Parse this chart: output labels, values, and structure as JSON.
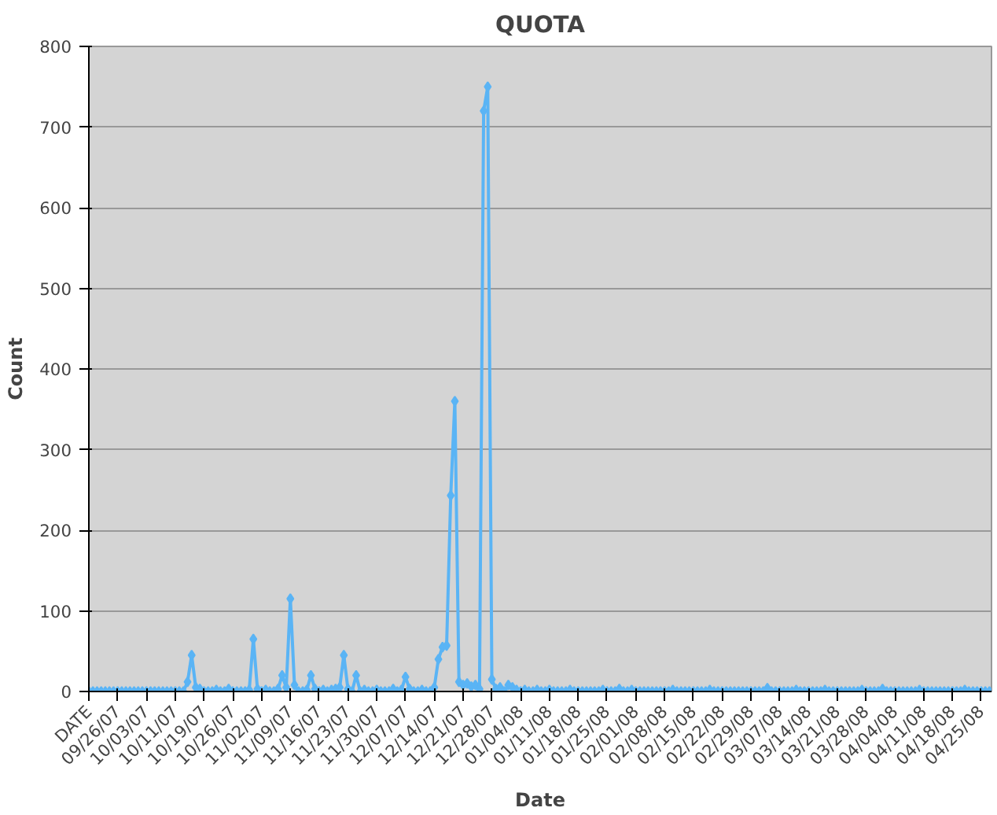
{
  "chart_data": {
    "type": "line",
    "title": "QUOTA",
    "xlabel": "Date",
    "ylabel": "Count",
    "categories": [
      "DATE",
      null,
      null,
      null,
      null,
      null,
      null,
      "09/26/07",
      null,
      null,
      null,
      null,
      null,
      null,
      "10/03/07",
      null,
      null,
      null,
      null,
      null,
      null,
      "10/11/07",
      null,
      null,
      null,
      null,
      null,
      null,
      "10/19/07",
      null,
      null,
      null,
      null,
      null,
      null,
      "10/26/07",
      null,
      null,
      null,
      null,
      null,
      null,
      "11/02/07",
      null,
      null,
      null,
      null,
      null,
      null,
      "11/09/07",
      null,
      null,
      null,
      null,
      null,
      null,
      "11/16/07",
      null,
      null,
      null,
      null,
      null,
      null,
      "11/23/07",
      null,
      null,
      null,
      null,
      null,
      null,
      "11/30/07",
      null,
      null,
      null,
      null,
      null,
      null,
      "12/07/07",
      null,
      null,
      null,
      null,
      null,
      null,
      "12/14/07",
      null,
      null,
      null,
      null,
      null,
      null,
      "12/21/07",
      null,
      null,
      null,
      null,
      null,
      null,
      "12/28/07",
      null,
      null,
      null,
      null,
      null,
      null,
      "01/04/08",
      null,
      null,
      null,
      null,
      null,
      null,
      "01/11/08",
      null,
      null,
      null,
      null,
      null,
      null,
      "01/18/08",
      null,
      null,
      null,
      null,
      null,
      null,
      "01/25/08",
      null,
      null,
      null,
      null,
      null,
      null,
      "02/01/08",
      null,
      null,
      null,
      null,
      null,
      null,
      "02/08/08",
      null,
      null,
      null,
      null,
      null,
      null,
      "02/15/08",
      null,
      null,
      null,
      null,
      null,
      null,
      "02/22/08",
      null,
      null,
      null,
      null,
      null,
      null,
      "02/29/08",
      null,
      null,
      null,
      null,
      null,
      null,
      "03/07/08",
      null,
      null,
      null,
      null,
      null,
      null,
      "03/14/08",
      null,
      null,
      null,
      null,
      null,
      null,
      "03/21/08",
      null,
      null,
      null,
      null,
      null,
      null,
      "03/28/08",
      null,
      null,
      null,
      null,
      null,
      null,
      "04/04/08",
      null,
      null,
      null,
      null,
      null,
      null,
      "04/11/08",
      null,
      null,
      null,
      null,
      null,
      null,
      "04/18/08",
      null,
      null,
      null,
      null,
      null,
      null,
      "04/25/08",
      null,
      null
    ],
    "series": [
      {
        "color": "#5ab4f5",
        "values": [
          0,
          0,
          0,
          0,
          0,
          0,
          0,
          0,
          0,
          0,
          0,
          0,
          0,
          0,
          0,
          0,
          0,
          0,
          0,
          0,
          0,
          0,
          0,
          0,
          12,
          45,
          5,
          3,
          0,
          0,
          0,
          2,
          0,
          0,
          3,
          0,
          0,
          0,
          0,
          2,
          65,
          3,
          0,
          2,
          0,
          0,
          3,
          20,
          5,
          115,
          8,
          0,
          0,
          2,
          20,
          3,
          0,
          2,
          0,
          2,
          3,
          5,
          45,
          3,
          0,
          20,
          0,
          2,
          0,
          0,
          2,
          0,
          0,
          0,
          3,
          0,
          2,
          18,
          3,
          0,
          0,
          2,
          0,
          0,
          5,
          40,
          55,
          57,
          243,
          360,
          12,
          8,
          10,
          6,
          8,
          3,
          720,
          750,
          15,
          3,
          5,
          0,
          8,
          5,
          2,
          0,
          2,
          0,
          0,
          2,
          0,
          0,
          2,
          0,
          0,
          0,
          0,
          2,
          0,
          0,
          0,
          0,
          0,
          0,
          0,
          2,
          0,
          0,
          0,
          3,
          0,
          0,
          2,
          0,
          0,
          0,
          0,
          0,
          0,
          0,
          0,
          0,
          2,
          0,
          0,
          0,
          0,
          0,
          0,
          0,
          0,
          2,
          0,
          0,
          0,
          0,
          0,
          0,
          0,
          0,
          0,
          0,
          0,
          0,
          0,
          4,
          0,
          0,
          0,
          0,
          0,
          0,
          2,
          0,
          0,
          0,
          0,
          0,
          0,
          2,
          0,
          0,
          0,
          0,
          0,
          0,
          0,
          0,
          2,
          0,
          0,
          0,
          0,
          3,
          0,
          0,
          0,
          0,
          0,
          0,
          0,
          0,
          2,
          0,
          0,
          0,
          0,
          0,
          0,
          0,
          0,
          0,
          0,
          2,
          0,
          0,
          0,
          0,
          0,
          0
        ]
      }
    ],
    "ylim": [
      0,
      800
    ],
    "yticks": [
      0,
      100,
      200,
      300,
      400,
      500,
      600,
      700,
      800
    ],
    "grid": "y",
    "marker": "diamond",
    "line_style": "solid"
  }
}
